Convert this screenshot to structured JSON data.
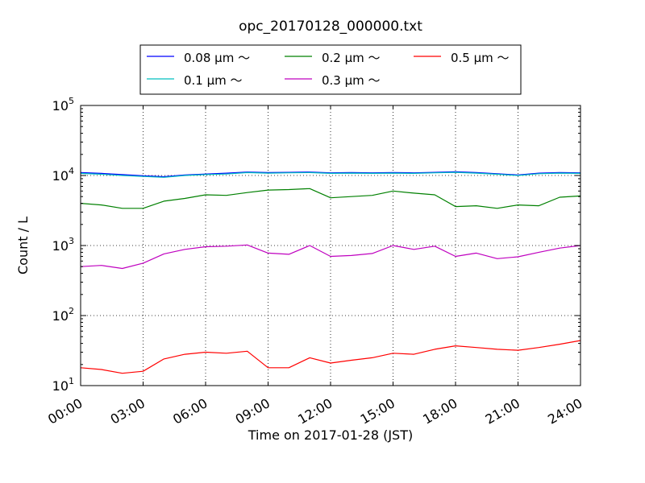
{
  "chart_data": {
    "type": "line",
    "title": "opc_20170128_000000.txt",
    "xlabel": "Time on 2017-01-28 (JST)",
    "ylabel": "Count / L",
    "y_scale": "log",
    "xlim": [
      0,
      24
    ],
    "ylim": [
      10,
      100000
    ],
    "grid": true,
    "legend_position": "top",
    "x_tick_labels": [
      "00:00",
      "03:00",
      "06:00",
      "09:00",
      "12:00",
      "15:00",
      "18:00",
      "21:00",
      "24:00"
    ],
    "y_ticks": [
      {
        "base": "10",
        "exp": "1"
      },
      {
        "base": "10",
        "exp": "2"
      },
      {
        "base": "10",
        "exp": "3"
      },
      {
        "base": "10",
        "exp": "4"
      },
      {
        "base": "10",
        "exp": "5"
      }
    ],
    "x": [
      0,
      1,
      2,
      3,
      4,
      5,
      6,
      7,
      8,
      9,
      10,
      11,
      12,
      13,
      14,
      15,
      16,
      17,
      18,
      19,
      20,
      21,
      22,
      23,
      24
    ],
    "series": [
      {
        "name": "0.08 μm ～",
        "color": "#0000ff",
        "values": [
          11000,
          10700,
          10300,
          9900,
          9600,
          10200,
          10500,
          10800,
          11200,
          11000,
          11100,
          11200,
          10900,
          11000,
          10900,
          11000,
          10900,
          11100,
          11300,
          11000,
          10600,
          10200,
          10800,
          11000,
          10900
        ]
      },
      {
        "name": "0.1 μm ～",
        "color": "#00bfbf",
        "values": [
          10700,
          10400,
          10000,
          9700,
          9400,
          10000,
          10300,
          10500,
          11000,
          10800,
          10900,
          11000,
          10700,
          10800,
          10700,
          10800,
          10700,
          10900,
          11100,
          10800,
          10400,
          10000,
          10600,
          10800,
          10700
        ]
      },
      {
        "name": "0.2 μm ～",
        "color": "#008000",
        "values": [
          4000,
          3800,
          3400,
          3400,
          4300,
          4700,
          5300,
          5200,
          5700,
          6200,
          6300,
          6500,
          4800,
          5000,
          5200,
          6000,
          5600,
          5300,
          3600,
          3700,
          3400,
          3800,
          3700,
          4900,
          5100
        ]
      },
      {
        "name": "0.3 μm ～",
        "color": "#bf00bf",
        "values": [
          500,
          520,
          470,
          560,
          760,
          880,
          960,
          980,
          1020,
          780,
          750,
          1000,
          700,
          720,
          770,
          1000,
          880,
          980,
          700,
          780,
          650,
          690,
          800,
          920,
          1000
        ]
      },
      {
        "name": "0.5 μm ～",
        "color": "#ff0000",
        "values": [
          18,
          17,
          15,
          16,
          24,
          28,
          30,
          29,
          31,
          18,
          18,
          25,
          21,
          23,
          25,
          29,
          28,
          33,
          37,
          35,
          33,
          32,
          35,
          39,
          44
        ]
      }
    ]
  }
}
